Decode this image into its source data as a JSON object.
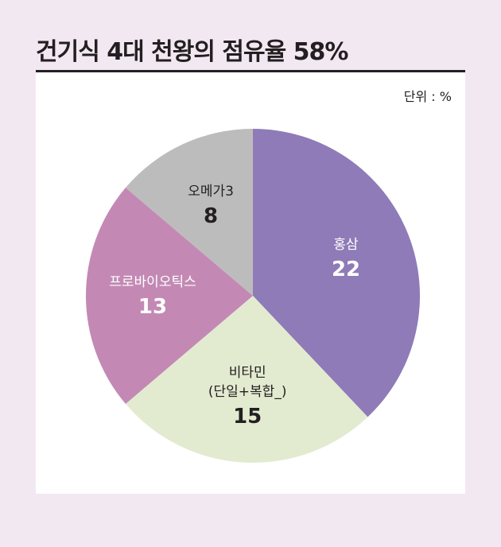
{
  "chart_data": {
    "type": "pie",
    "title": "건기식 4대 천왕의 점유율 58%",
    "unit_label": "단위 : %",
    "categories": [
      "홍삼",
      "비타민\n(단일+복합_)",
      "프로바이오틱스",
      "오메가3"
    ],
    "values": [
      22,
      15,
      13,
      8
    ],
    "colors": [
      "#8e7bb7",
      "#e2ebd0",
      "#c389b4",
      "#bdbcbd"
    ],
    "label_colors": [
      "#ffffff",
      "#231f20",
      "#ffffff",
      "#231f20"
    ]
  }
}
